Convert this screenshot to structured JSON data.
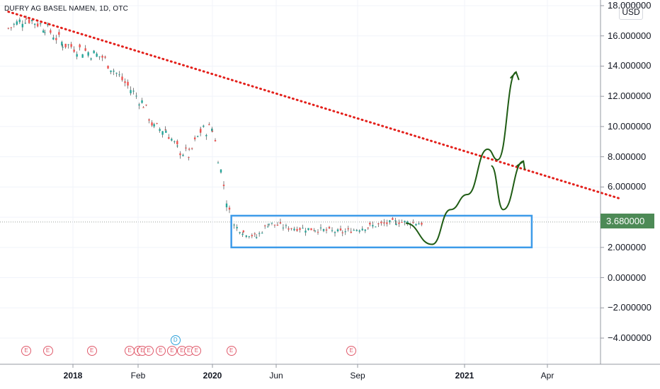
{
  "title": "DUFRY AG BASEL NAMEN, 1D, OTC",
  "currency_button": "USD",
  "last_price": "3.680000",
  "colors": {
    "up_candle": "#26a69a",
    "down_candle": "#ef5350",
    "trendline": "#e3201b",
    "range_box": "#3d9be9",
    "projection": "#1f5c14",
    "price_badge": "#4d8a56",
    "event_earnings": "#e05a6b",
    "event_dividend": "#2a9fd8"
  },
  "events": [
    {
      "label": "E",
      "date": "2017-10-15"
    },
    {
      "label": "E",
      "date": "2017-11-20"
    },
    {
      "label": "E",
      "date": "2018-01-10"
    },
    {
      "label": "E",
      "date": "2018-01-28"
    },
    {
      "label": "E",
      "date": "2018-02-02"
    },
    {
      "label": "E",
      "date": "2018-02-12"
    },
    {
      "label": "E",
      "date": "2018-03-01"
    },
    {
      "label": "E",
      "date": "2018-04-01"
    },
    {
      "label": "E",
      "date": "2018-05-01"
    },
    {
      "label": "E",
      "date": "2018-05-27"
    },
    {
      "label": "E",
      "date": "2018-06-14"
    },
    {
      "label": "E",
      "date": "2018-07-04"
    },
    {
      "label": "E",
      "date": "2020-02-15"
    },
    {
      "label": "E",
      "date": "2020-08-25"
    }
  ],
  "dividend_event": {
    "label": "D",
    "date": "2018-05-10"
  },
  "chart_data": {
    "type": "line",
    "title": "DUFRY AG BASEL NAMEN, 1D, OTC",
    "ylabel": "USD",
    "ylim": [
      -6.5,
      18
    ],
    "y_ticks": [
      "18.000000",
      "16.000000",
      "14.000000",
      "12.000000",
      "10.000000",
      "8.000000",
      "6.000000",
      "4.000000",
      "2.000000",
      "0.000000",
      "−2.000000",
      "−4.000000"
    ],
    "y_tick_values": [
      18,
      16,
      14,
      12,
      10,
      8,
      6,
      4,
      2,
      0,
      -2,
      -4
    ],
    "x_ticks": [
      {
        "label": "2018",
        "bold": true
      },
      {
        "label": "Feb",
        "bold": false
      },
      {
        "label": "2020",
        "bold": true
      },
      {
        "label": "Jun",
        "bold": false
      },
      {
        "label": "Sep",
        "bold": false
      },
      {
        "label": "2021",
        "bold": true
      },
      {
        "label": "Apr",
        "bold": false
      }
    ],
    "last_value": 3.68,
    "series": [
      {
        "x": [
          "2017-09",
          "2017-10",
          "2017-11",
          "2017-12",
          "2018-01",
          "2018-02",
          "2018-03",
          "2018-04",
          "2018-05",
          "2018-06",
          "2018-07",
          "2018-08",
          "2020-02",
          "2020-03",
          "2020-04",
          "2020-05",
          "2020-06",
          "2020-07",
          "2020-08",
          "2020-09",
          "2020-10",
          "2020-11"
        ],
        "values": [
          16.5,
          17.2,
          16.6,
          15.5,
          14.6,
          11.5,
          9.9,
          9.8,
          8.5,
          8.1,
          9.7,
          9.9,
          3.6,
          3.0,
          2.7,
          3.6,
          3.3,
          3.2,
          3.0,
          3.4,
          3.7,
          3.6
        ]
      }
    ],
    "annotations": {
      "trendline": {
        "style": "dotted",
        "start": {
          "x": "2017-09",
          "y": 17.6
        },
        "end": {
          "x": "2021-06",
          "y": 5.2
        }
      },
      "range_box": {
        "x_start": "2020-02",
        "x_end": "2021-03",
        "y_low": 2.0,
        "y_high": 4.1
      },
      "projection_path": [
        {
          "x": "2020-10-26",
          "y": 3.6
        },
        {
          "x": "2020-11-25",
          "y": 2.2
        },
        {
          "x": "2020-12-16",
          "y": 4.5
        },
        {
          "x": "2021-01-04",
          "y": 5.5
        },
        {
          "x": "2021-01-26",
          "y": 8.5
        },
        {
          "x": "2021-02-06",
          "y": 7.8
        },
        {
          "x": "2021-02-26",
          "y": 13.6
        }
      ],
      "projection_path_2": [
        {
          "x": "2021-01-30",
          "y": 7.4
        },
        {
          "x": "2021-02-12",
          "y": 4.5
        },
        {
          "x": "2021-03-06",
          "y": 7.7
        }
      ]
    }
  }
}
